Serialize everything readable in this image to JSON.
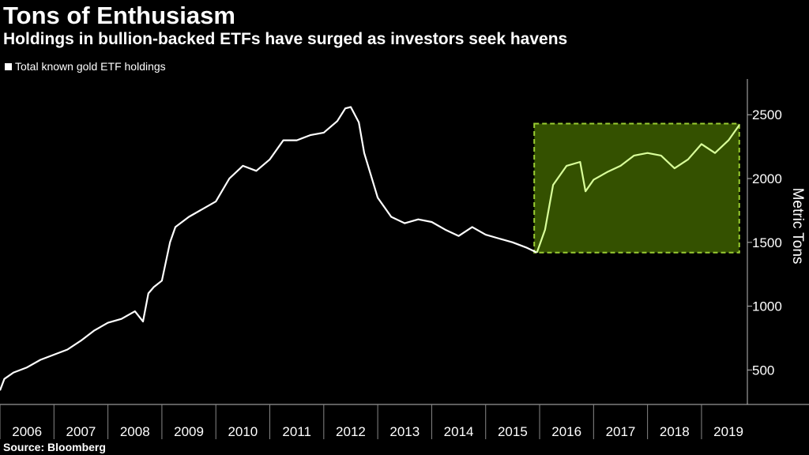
{
  "header": {
    "title": "Tons of Enthusiasm",
    "subtitle": "Holdings in bullion-backed ETFs have surged as investors seek havens"
  },
  "legend": {
    "label": "Total known gold ETF holdings"
  },
  "footer": {
    "source": "Source: Bloomberg"
  },
  "colors": {
    "background": "#000000",
    "line": "#ffffff",
    "highlight_line": "#d9ff9a",
    "highlight_fill": "#3a5a00",
    "highlight_border": "#9acd32"
  },
  "chart_data": {
    "type": "line",
    "title": "Tons of Enthusiasm",
    "subtitle": "Holdings in bullion-backed ETFs have surged as investors seek havens",
    "ylabel": "Metric Tons",
    "xlabel": "",
    "xlim": [
      2006.0,
      2019.85
    ],
    "ylim": [
      230,
      2780
    ],
    "yticks": [
      500,
      1000,
      1500,
      2000,
      2500
    ],
    "xticks": [
      "2006",
      "2007",
      "2008",
      "2009",
      "2010",
      "2011",
      "2012",
      "2013",
      "2014",
      "2015",
      "2016",
      "2017",
      "2018",
      "2019"
    ],
    "grid": false,
    "y_axis_position": "right",
    "highlight": {
      "x_start": 2015.9,
      "x_end": 2019.7,
      "y_min": 1420,
      "y_max": 2430
    },
    "series": [
      {
        "name": "Total known gold ETF holdings",
        "x": [
          2006.0,
          2006.08,
          2006.25,
          2006.5,
          2006.75,
          2007.0,
          2007.25,
          2007.5,
          2007.75,
          2008.0,
          2008.25,
          2008.5,
          2008.65,
          2008.75,
          2008.85,
          2009.0,
          2009.15,
          2009.25,
          2009.5,
          2009.75,
          2010.0,
          2010.25,
          2010.5,
          2010.75,
          2011.0,
          2011.25,
          2011.5,
          2011.75,
          2012.0,
          2012.25,
          2012.4,
          2012.5,
          2012.65,
          2012.75,
          2013.0,
          2013.25,
          2013.5,
          2013.75,
          2014.0,
          2014.25,
          2014.5,
          2014.75,
          2015.0,
          2015.25,
          2015.5,
          2015.75,
          2015.95,
          2016.1,
          2016.25,
          2016.5,
          2016.75,
          2016.85,
          2017.0,
          2017.25,
          2017.5,
          2017.75,
          2018.0,
          2018.25,
          2018.5,
          2018.75,
          2019.0,
          2019.25,
          2019.5,
          2019.7
        ],
        "y": [
          340,
          430,
          480,
          520,
          580,
          620,
          660,
          730,
          810,
          870,
          900,
          960,
          880,
          1100,
          1150,
          1200,
          1500,
          1620,
          1700,
          1760,
          1820,
          2000,
          2100,
          2060,
          2150,
          2300,
          2300,
          2340,
          2360,
          2450,
          2550,
          2560,
          2440,
          2200,
          1850,
          1700,
          1650,
          1680,
          1660,
          1600,
          1550,
          1620,
          1560,
          1530,
          1500,
          1460,
          1420,
          1600,
          1950,
          2100,
          2130,
          1900,
          1990,
          2050,
          2100,
          2180,
          2200,
          2180,
          2080,
          2150,
          2270,
          2200,
          2300,
          2420
        ]
      }
    ]
  }
}
